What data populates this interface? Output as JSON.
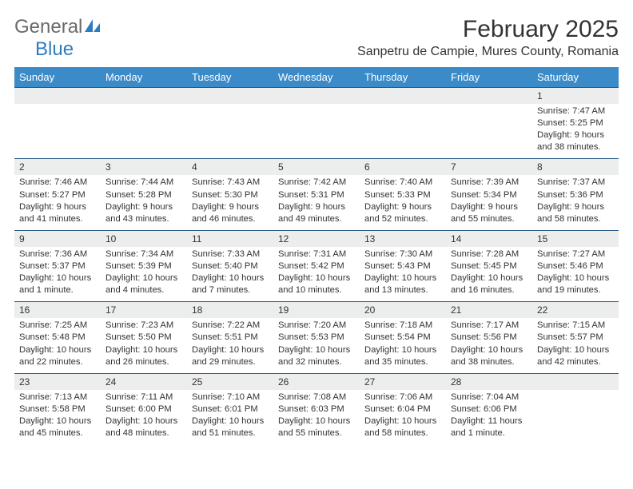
{
  "logo": {
    "part1": "General",
    "part2": "Blue"
  },
  "title": "February 2025",
  "subtitle": "Sanpetru de Campie, Mures County, Romania",
  "colors": {
    "header_bg": "#3b8bc9",
    "header_text": "#ffffff",
    "daynum_bg": "#eceded",
    "border": "#2a5a8a",
    "logo_gray": "#6a6a6a",
    "logo_blue": "#2f7bbf"
  },
  "weekdays": [
    "Sunday",
    "Monday",
    "Tuesday",
    "Wednesday",
    "Thursday",
    "Friday",
    "Saturday"
  ],
  "weeks": [
    [
      {
        "day": "",
        "sunrise": "",
        "sunset": "",
        "daylight": ""
      },
      {
        "day": "",
        "sunrise": "",
        "sunset": "",
        "daylight": ""
      },
      {
        "day": "",
        "sunrise": "",
        "sunset": "",
        "daylight": ""
      },
      {
        "day": "",
        "sunrise": "",
        "sunset": "",
        "daylight": ""
      },
      {
        "day": "",
        "sunrise": "",
        "sunset": "",
        "daylight": ""
      },
      {
        "day": "",
        "sunrise": "",
        "sunset": "",
        "daylight": ""
      },
      {
        "day": "1",
        "sunrise": "Sunrise: 7:47 AM",
        "sunset": "Sunset: 5:25 PM",
        "daylight": "Daylight: 9 hours and 38 minutes."
      }
    ],
    [
      {
        "day": "2",
        "sunrise": "Sunrise: 7:46 AM",
        "sunset": "Sunset: 5:27 PM",
        "daylight": "Daylight: 9 hours and 41 minutes."
      },
      {
        "day": "3",
        "sunrise": "Sunrise: 7:44 AM",
        "sunset": "Sunset: 5:28 PM",
        "daylight": "Daylight: 9 hours and 43 minutes."
      },
      {
        "day": "4",
        "sunrise": "Sunrise: 7:43 AM",
        "sunset": "Sunset: 5:30 PM",
        "daylight": "Daylight: 9 hours and 46 minutes."
      },
      {
        "day": "5",
        "sunrise": "Sunrise: 7:42 AM",
        "sunset": "Sunset: 5:31 PM",
        "daylight": "Daylight: 9 hours and 49 minutes."
      },
      {
        "day": "6",
        "sunrise": "Sunrise: 7:40 AM",
        "sunset": "Sunset: 5:33 PM",
        "daylight": "Daylight: 9 hours and 52 minutes."
      },
      {
        "day": "7",
        "sunrise": "Sunrise: 7:39 AM",
        "sunset": "Sunset: 5:34 PM",
        "daylight": "Daylight: 9 hours and 55 minutes."
      },
      {
        "day": "8",
        "sunrise": "Sunrise: 7:37 AM",
        "sunset": "Sunset: 5:36 PM",
        "daylight": "Daylight: 9 hours and 58 minutes."
      }
    ],
    [
      {
        "day": "9",
        "sunrise": "Sunrise: 7:36 AM",
        "sunset": "Sunset: 5:37 PM",
        "daylight": "Daylight: 10 hours and 1 minute."
      },
      {
        "day": "10",
        "sunrise": "Sunrise: 7:34 AM",
        "sunset": "Sunset: 5:39 PM",
        "daylight": "Daylight: 10 hours and 4 minutes."
      },
      {
        "day": "11",
        "sunrise": "Sunrise: 7:33 AM",
        "sunset": "Sunset: 5:40 PM",
        "daylight": "Daylight: 10 hours and 7 minutes."
      },
      {
        "day": "12",
        "sunrise": "Sunrise: 7:31 AM",
        "sunset": "Sunset: 5:42 PM",
        "daylight": "Daylight: 10 hours and 10 minutes."
      },
      {
        "day": "13",
        "sunrise": "Sunrise: 7:30 AM",
        "sunset": "Sunset: 5:43 PM",
        "daylight": "Daylight: 10 hours and 13 minutes."
      },
      {
        "day": "14",
        "sunrise": "Sunrise: 7:28 AM",
        "sunset": "Sunset: 5:45 PM",
        "daylight": "Daylight: 10 hours and 16 minutes."
      },
      {
        "day": "15",
        "sunrise": "Sunrise: 7:27 AM",
        "sunset": "Sunset: 5:46 PM",
        "daylight": "Daylight: 10 hours and 19 minutes."
      }
    ],
    [
      {
        "day": "16",
        "sunrise": "Sunrise: 7:25 AM",
        "sunset": "Sunset: 5:48 PM",
        "daylight": "Daylight: 10 hours and 22 minutes."
      },
      {
        "day": "17",
        "sunrise": "Sunrise: 7:23 AM",
        "sunset": "Sunset: 5:50 PM",
        "daylight": "Daylight: 10 hours and 26 minutes."
      },
      {
        "day": "18",
        "sunrise": "Sunrise: 7:22 AM",
        "sunset": "Sunset: 5:51 PM",
        "daylight": "Daylight: 10 hours and 29 minutes."
      },
      {
        "day": "19",
        "sunrise": "Sunrise: 7:20 AM",
        "sunset": "Sunset: 5:53 PM",
        "daylight": "Daylight: 10 hours and 32 minutes."
      },
      {
        "day": "20",
        "sunrise": "Sunrise: 7:18 AM",
        "sunset": "Sunset: 5:54 PM",
        "daylight": "Daylight: 10 hours and 35 minutes."
      },
      {
        "day": "21",
        "sunrise": "Sunrise: 7:17 AM",
        "sunset": "Sunset: 5:56 PM",
        "daylight": "Daylight: 10 hours and 38 minutes."
      },
      {
        "day": "22",
        "sunrise": "Sunrise: 7:15 AM",
        "sunset": "Sunset: 5:57 PM",
        "daylight": "Daylight: 10 hours and 42 minutes."
      }
    ],
    [
      {
        "day": "23",
        "sunrise": "Sunrise: 7:13 AM",
        "sunset": "Sunset: 5:58 PM",
        "daylight": "Daylight: 10 hours and 45 minutes."
      },
      {
        "day": "24",
        "sunrise": "Sunrise: 7:11 AM",
        "sunset": "Sunset: 6:00 PM",
        "daylight": "Daylight: 10 hours and 48 minutes."
      },
      {
        "day": "25",
        "sunrise": "Sunrise: 7:10 AM",
        "sunset": "Sunset: 6:01 PM",
        "daylight": "Daylight: 10 hours and 51 minutes."
      },
      {
        "day": "26",
        "sunrise": "Sunrise: 7:08 AM",
        "sunset": "Sunset: 6:03 PM",
        "daylight": "Daylight: 10 hours and 55 minutes."
      },
      {
        "day": "27",
        "sunrise": "Sunrise: 7:06 AM",
        "sunset": "Sunset: 6:04 PM",
        "daylight": "Daylight: 10 hours and 58 minutes."
      },
      {
        "day": "28",
        "sunrise": "Sunrise: 7:04 AM",
        "sunset": "Sunset: 6:06 PM",
        "daylight": "Daylight: 11 hours and 1 minute."
      },
      {
        "day": "",
        "sunrise": "",
        "sunset": "",
        "daylight": ""
      }
    ]
  ]
}
